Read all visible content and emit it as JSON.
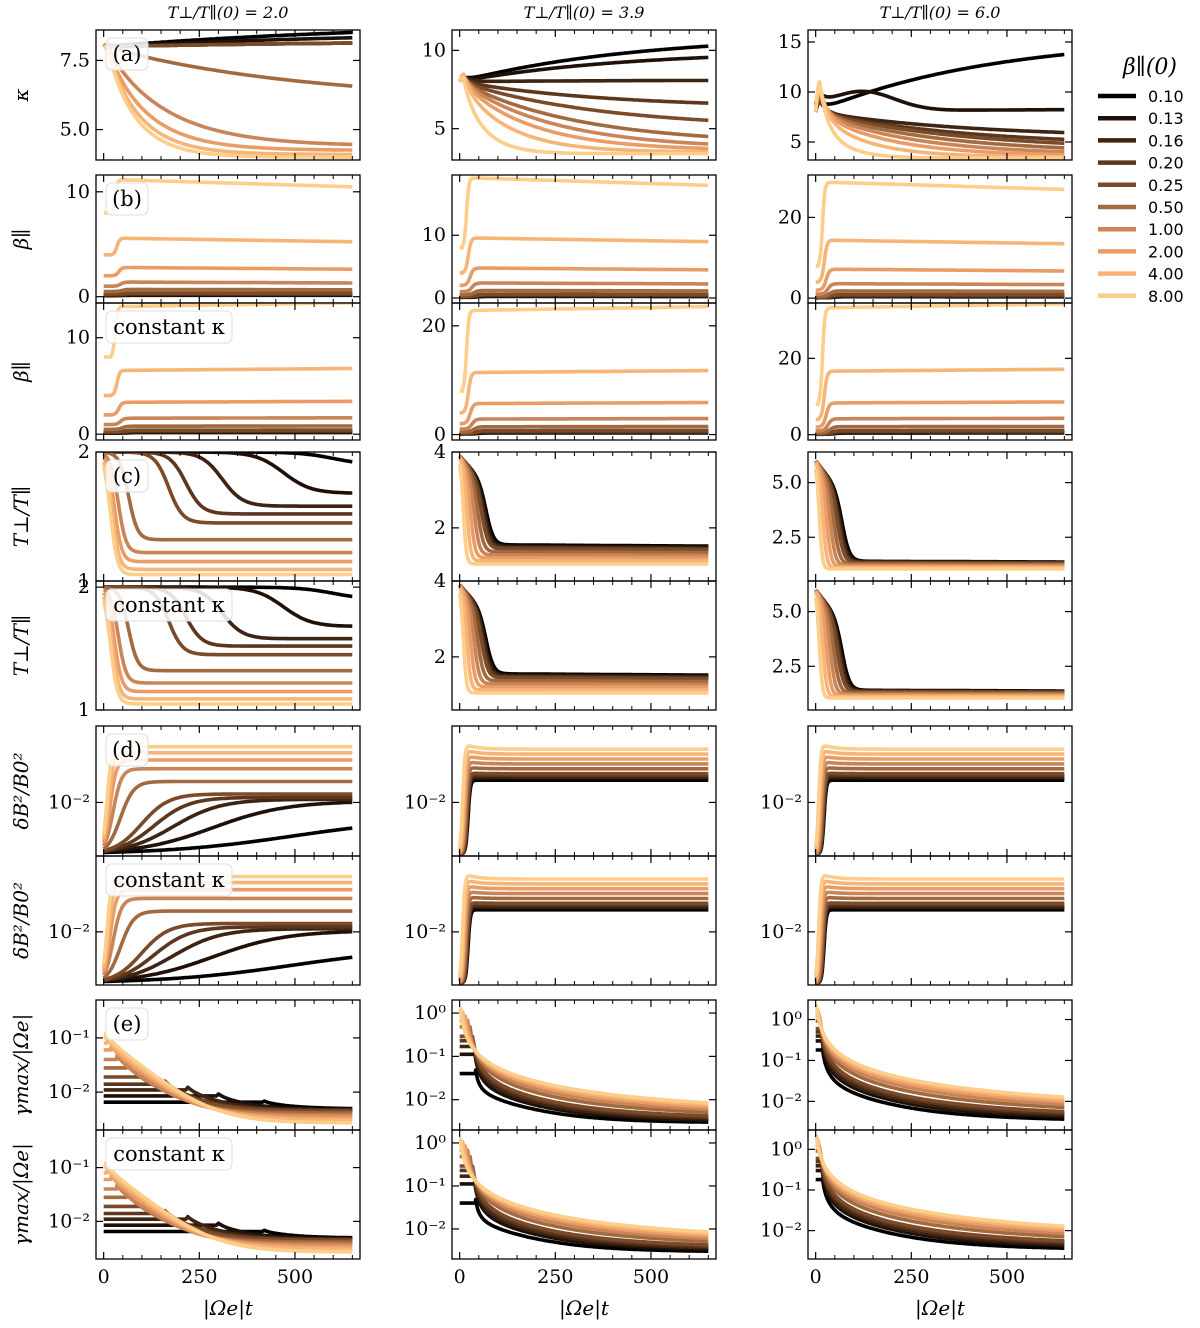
{
  "chart_data": {
    "type": "line",
    "title": "",
    "column_titles": [
      "T⊥/T∥(0) = 2.0",
      "T⊥/T∥(0) = 3.9",
      "T⊥/T∥(0) = 6.0"
    ],
    "xlabel": "|Ωe|t",
    "xlim": [
      -20,
      670
    ],
    "xticks": [
      0,
      250,
      500
    ],
    "legend": {
      "title": "β∥(0)",
      "placement": "right",
      "entries": [
        "0.10",
        "0.13",
        "0.16",
        "0.20",
        "0.25",
        "0.50",
        "1.00",
        "2.00",
        "4.00",
        "8.00"
      ]
    },
    "series_colors": [
      "#000000",
      "#1f1109",
      "#3d2413",
      "#5c371d",
      "#7b4a28",
      "#a26a3f",
      "#c98557",
      "#ea9c66",
      "#f6b577",
      "#fdcd8a"
    ],
    "rows": [
      {
        "ylabel": "κ",
        "panel_label": "(a)",
        "scale": "linear",
        "yticks": [
          [
            "5.0",
            "7.5"
          ],
          [
            "5",
            "10"
          ],
          [
            "5",
            "10",
            "15"
          ]
        ],
        "ylims": [
          [
            3.9,
            8.6
          ],
          [
            3.0,
            11.3
          ],
          [
            3.2,
            16.2
          ]
        ]
      },
      {
        "ylabel": "β∥",
        "panel_label": "(b)",
        "scale": "linear",
        "yticks": [
          [
            "0",
            "10"
          ],
          [
            "0",
            "10"
          ],
          [
            "0",
            "20"
          ]
        ],
        "ylims": [
          [
            -0.6,
            11.6
          ],
          [
            -0.8,
            19.6
          ],
          [
            -1.2,
            30.5
          ]
        ]
      },
      {
        "ylabel": "β∥",
        "panel_label": "constant κ",
        "scale": "linear",
        "yticks": [
          [
            "0",
            "10"
          ],
          [
            "0",
            "20"
          ],
          [
            "0",
            "20"
          ]
        ],
        "ylims": [
          [
            -0.6,
            13.6
          ],
          [
            -1.0,
            24.2
          ],
          [
            -1.4,
            34.5
          ]
        ]
      },
      {
        "ylabel": "T⊥/T∥",
        "panel_label": "(c)",
        "scale": "linear",
        "yticks": [
          [
            "1",
            "2"
          ],
          [
            "2",
            "4"
          ],
          [
            "2.5",
            "5.0"
          ]
        ],
        "ylims": [
          [
            1.0,
            2.0
          ],
          [
            0.6,
            4.0
          ],
          [
            0.5,
            6.4
          ]
        ]
      },
      {
        "ylabel": "T⊥/T∥",
        "panel_label": "constant κ",
        "scale": "linear",
        "yticks": [
          [
            "1",
            "2"
          ],
          [
            "2",
            "4"
          ],
          [
            "2.5",
            "5.0"
          ]
        ],
        "ylims": [
          [
            1.0,
            2.05
          ],
          [
            0.6,
            4.0
          ],
          [
            0.5,
            6.4
          ]
        ]
      },
      {
        "ylabel": "δB²/B0²",
        "panel_label": "(d)",
        "scale": "log",
        "yticks": [
          [
            "10⁻²"
          ],
          [
            "10⁻²"
          ],
          [
            "10⁻²"
          ]
        ],
        "ylims": [
          [
            0.0015,
            0.15
          ],
          [
            0.0015,
            0.15
          ],
          [
            0.0015,
            0.15
          ]
        ]
      },
      {
        "ylabel": "δB²/B0²",
        "panel_label": "constant κ",
        "scale": "log",
        "yticks": [
          [
            "10⁻²"
          ],
          [
            "10⁻²"
          ],
          [
            "10⁻²"
          ]
        ],
        "ylims": [
          [
            0.0015,
            0.15
          ],
          [
            0.0015,
            0.15
          ],
          [
            0.0015,
            0.15
          ]
        ]
      },
      {
        "ylabel": "γmax/|Ωe|",
        "panel_label": "(e)",
        "scale": "log",
        "yticks": [
          [
            "10⁻²",
            "10⁻¹"
          ],
          [
            "10⁻²",
            "10⁻¹",
            "10⁰"
          ],
          [
            "10⁻²",
            "10⁻¹",
            "10⁰"
          ]
        ],
        "ylims": [
          [
            0.002,
            0.5
          ],
          [
            0.002,
            2.0
          ],
          [
            0.002,
            3.0
          ]
        ]
      },
      {
        "ylabel": "γmax/|Ωe|",
        "panel_label": "constant κ",
        "scale": "log",
        "yticks": [
          [
            "10⁻²",
            "10⁻¹"
          ],
          [
            "10⁻²",
            "10⁻¹",
            "10⁰"
          ],
          [
            "10⁻²",
            "10⁻¹",
            "10⁰"
          ]
        ],
        "ylims": [
          [
            0.002,
            0.5
          ],
          [
            0.002,
            2.0
          ],
          [
            0.002,
            3.0
          ]
        ]
      }
    ]
  }
}
